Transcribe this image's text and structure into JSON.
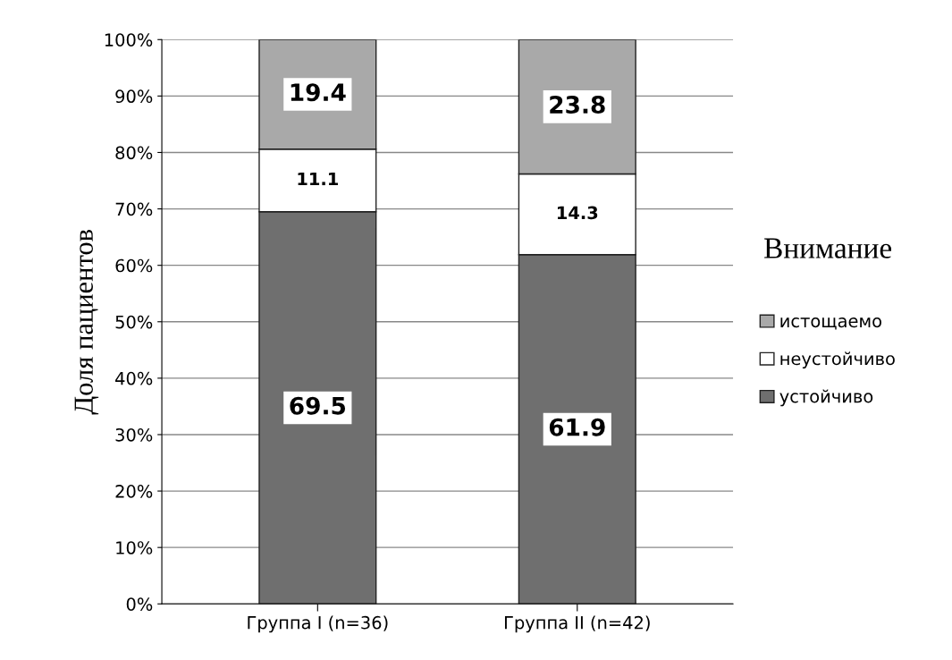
{
  "chart_data": {
    "type": "bar",
    "stacked": true,
    "ylabel": "Доля пациентов",
    "legend_title": "Внимание",
    "categories": [
      "Группа I (n=36)",
      "Группа II (n=42)"
    ],
    "series": [
      {
        "name": "устойчиво",
        "color": "#6f6f6f",
        "values": [
          69.5,
          61.9
        ]
      },
      {
        "name": "неустойчиво",
        "color": "#ffffff",
        "values": [
          11.1,
          14.3
        ]
      },
      {
        "name": "истощаемо",
        "color": "#a9a9a9",
        "values": [
          19.4,
          23.8
        ]
      }
    ],
    "ylim": [
      0,
      100
    ],
    "yticks": [
      {
        "value": 0,
        "label": "0%"
      },
      {
        "value": 10,
        "label": "10%"
      },
      {
        "value": 20,
        "label": "20%"
      },
      {
        "value": 30,
        "label": "30%"
      },
      {
        "value": 40,
        "label": "40%"
      },
      {
        "value": 50,
        "label": "50%"
      },
      {
        "value": 60,
        "label": "60%"
      },
      {
        "value": 70,
        "label": "70%"
      },
      {
        "value": 80,
        "label": "80%"
      },
      {
        "value": 90,
        "label": "90%"
      },
      {
        "value": 100,
        "label": "100%"
      }
    ],
    "grid": "y",
    "legend": "right",
    "data_labels": true
  }
}
